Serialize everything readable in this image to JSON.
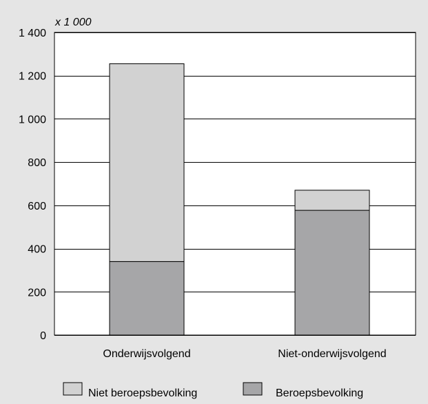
{
  "chart_data": {
    "type": "bar",
    "stacked": true,
    "unit_label": "x 1 000",
    "categories": [
      "Onderwijsvolgend",
      "Niet-onderwijsvolgend"
    ],
    "series": [
      {
        "name": "Beroepsbevolking",
        "values": [
          340,
          577
        ],
        "color": "#a6a6a8"
      },
      {
        "name": "Niet beroepsbevolking",
        "values": [
          915,
          93
        ],
        "color": "#d2d2d2"
      }
    ],
    "legend_order": [
      "Niet beroepsbevolking",
      "Beroepsbevolking"
    ],
    "yticks": [
      "0",
      "200",
      "400",
      "600",
      "800",
      "1 000",
      "1 200",
      "1 400"
    ],
    "ytick_values": [
      0,
      200,
      400,
      600,
      800,
      1000,
      1200,
      1400
    ],
    "ylim": [
      0,
      1400
    ],
    "grid": true,
    "legend_position": "bottom",
    "colors": {
      "background": "#e5e5e5",
      "plot_background": "#ffffff",
      "grid": "#000000"
    }
  }
}
